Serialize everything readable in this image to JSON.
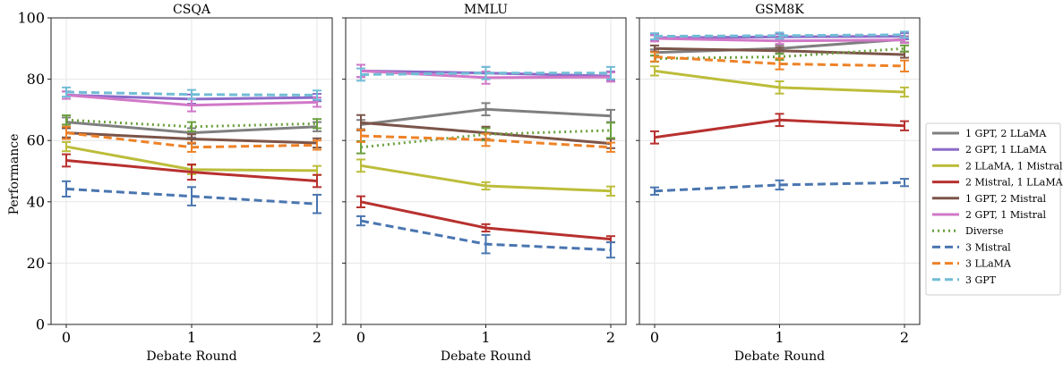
{
  "chart_data": {
    "type": "line",
    "ylabel": "Performance",
    "ylim": [
      0,
      100
    ],
    "yticks": [
      "0",
      "20",
      "40",
      "60",
      "80",
      "100"
    ],
    "x": [
      0,
      1,
      2
    ],
    "xticks": [
      "0",
      "1",
      "2"
    ],
    "legend_position": "right",
    "grid": true,
    "series_styles": [
      {
        "name": "1 GPT, 2 LLaMA",
        "color": "#7f7f7f",
        "dash": "solid"
      },
      {
        "name": "2 GPT, 1 LLaMA",
        "color": "#8c6bc8",
        "dash": "solid"
      },
      {
        "name": "2 LLaMA, 1 Mistral",
        "color": "#bcbd3a",
        "dash": "solid"
      },
      {
        "name": "2 Mistral, 1 LLaMA",
        "color": "#b7312f",
        "dash": "solid"
      },
      {
        "name": "1 GPT, 2 Mistral",
        "color": "#7b5449",
        "dash": "solid"
      },
      {
        "name": "2 GPT, 1 Mistral",
        "color": "#d178c8",
        "dash": "solid"
      },
      {
        "name": "Diverse",
        "color": "#6aa03d",
        "dash": "dotted"
      },
      {
        "name": "3 Mistral",
        "color": "#4a76b0",
        "dash": "dashed"
      },
      {
        "name": "3 LLaMA",
        "color": "#ee8227",
        "dash": "dashed"
      },
      {
        "name": "3 GPT",
        "color": "#71bcd6",
        "dash": "dashed"
      }
    ],
    "panels": [
      {
        "title": "CSQA",
        "xlabel": "Debate Round",
        "series": [
          {
            "name": "1 GPT, 2 LLaMA",
            "values": [
              66.0,
              62.5,
              64.5
            ],
            "err": [
              1.5,
              1.5,
              1.5
            ]
          },
          {
            "name": "2 GPT, 1 LLaMA",
            "values": [
              74.8,
              73.5,
              74.0
            ],
            "err": [
              1.2,
              1.5,
              1.2
            ]
          },
          {
            "name": "2 LLaMA, 1 Mistral",
            "values": [
              58.0,
              50.5,
              50.2
            ],
            "err": [
              1.5,
              1.5,
              1.5
            ]
          },
          {
            "name": "2 Mistral, 1 LLaMA",
            "values": [
              53.5,
              49.7,
              46.8
            ],
            "err": [
              2.0,
              2.5,
              2.0
            ]
          },
          {
            "name": "1 GPT, 2 Mistral",
            "values": [
              62.5,
              60.5,
              59.2
            ],
            "err": [
              1.5,
              1.5,
              1.5
            ]
          },
          {
            "name": "2 GPT, 1 Mistral",
            "values": [
              74.8,
              71.5,
              72.5
            ],
            "err": [
              1.2,
              2.0,
              1.5
            ]
          },
          {
            "name": "Diverse",
            "values": [
              66.7,
              64.5,
              65.5
            ],
            "err": [
              1.5,
              1.5,
              1.5
            ]
          },
          {
            "name": "3 Mistral",
            "values": [
              44.2,
              41.8,
              39.3
            ],
            "err": [
              2.5,
              3.0,
              3.0
            ]
          },
          {
            "name": "3 LLaMA",
            "values": [
              62.5,
              57.8,
              58.5
            ],
            "err": [
              2.0,
              1.5,
              1.5
            ]
          },
          {
            "name": "3 GPT",
            "values": [
              75.8,
              75.0,
              74.8
            ],
            "err": [
              1.5,
              1.5,
              1.5
            ]
          }
        ]
      },
      {
        "title": "MMLU",
        "xlabel": "Debate Round",
        "series": [
          {
            "name": "1 GPT, 2 LLaMA",
            "values": [
              65.2,
              70.2,
              68.0
            ],
            "err": [
              1.5,
              2.0,
              2.0
            ]
          },
          {
            "name": "2 GPT, 1 LLaMA",
            "values": [
              82.7,
              82.0,
              81.0
            ],
            "err": [
              2.0,
              2.0,
              1.5
            ]
          },
          {
            "name": "2 LLaMA, 1 Mistral",
            "values": [
              51.8,
              45.2,
              43.5
            ],
            "err": [
              2.0,
              1.2,
              1.5
            ]
          },
          {
            "name": "2 Mistral, 1 LLaMA",
            "values": [
              40.0,
              31.5,
              27.8
            ],
            "err": [
              1.8,
              1.2,
              1.0
            ]
          },
          {
            "name": "1 GPT, 2 Mistral",
            "values": [
              65.8,
              62.5,
              59.0
            ],
            "err": [
              2.5,
              2.0,
              1.5
            ]
          },
          {
            "name": "2 GPT, 1 Mistral",
            "values": [
              82.7,
              80.5,
              80.7
            ],
            "err": [
              2.0,
              2.0,
              1.5
            ]
          },
          {
            "name": "Diverse",
            "values": [
              57.8,
              62.0,
              63.3
            ],
            "err": [
              2.0,
              2.0,
              2.5
            ]
          },
          {
            "name": "3 Mistral",
            "values": [
              33.8,
              26.2,
              24.3
            ],
            "err": [
              1.5,
              3.0,
              2.5
            ]
          },
          {
            "name": "3 LLaMA",
            "values": [
              61.5,
              60.2,
              57.8
            ],
            "err": [
              2.0,
              2.0,
              1.5
            ]
          },
          {
            "name": "3 GPT",
            "values": [
              81.5,
              82.0,
              82.0
            ],
            "err": [
              2.0,
              2.0,
              2.0
            ]
          }
        ]
      },
      {
        "title": "GSM8K",
        "xlabel": "Debate Round",
        "series": [
          {
            "name": "1 GPT, 2 LLaMA",
            "values": [
              88.7,
              90.0,
              93.0
            ],
            "err": [
              1.0,
              1.0,
              1.0
            ]
          },
          {
            "name": "2 GPT, 1 LLaMA",
            "values": [
              93.5,
              93.8,
              94.0
            ],
            "err": [
              1.0,
              1.0,
              1.0
            ]
          },
          {
            "name": "2 LLaMA, 1 Mistral",
            "values": [
              82.7,
              77.3,
              75.8
            ],
            "err": [
              1.5,
              2.0,
              1.5
            ]
          },
          {
            "name": "2 Mistral, 1 LLaMA",
            "values": [
              61.0,
              66.7,
              64.8
            ],
            "err": [
              2.0,
              2.0,
              1.5
            ]
          },
          {
            "name": "1 GPT, 2 Mistral",
            "values": [
              90.0,
              89.3,
              88.0
            ],
            "err": [
              1.0,
              1.0,
              1.0
            ]
          },
          {
            "name": "2 GPT, 1 Mistral",
            "values": [
              93.3,
              92.5,
              92.8
            ],
            "err": [
              1.0,
              1.0,
              1.0
            ]
          },
          {
            "name": "Diverse",
            "values": [
              86.7,
              87.3,
              90.0
            ],
            "err": [
              1.0,
              1.0,
              1.0
            ]
          },
          {
            "name": "3 Mistral",
            "values": [
              43.5,
              45.5,
              46.3
            ],
            "err": [
              1.2,
              1.5,
              1.2
            ]
          },
          {
            "name": "3 LLaMA",
            "values": [
              87.3,
              85.0,
              84.3
            ],
            "err": [
              1.5,
              1.8,
              1.8
            ]
          },
          {
            "name": "3 GPT",
            "values": [
              94.0,
              94.2,
              94.5
            ],
            "err": [
              1.0,
              1.0,
              1.0
            ]
          }
        ]
      }
    ]
  }
}
